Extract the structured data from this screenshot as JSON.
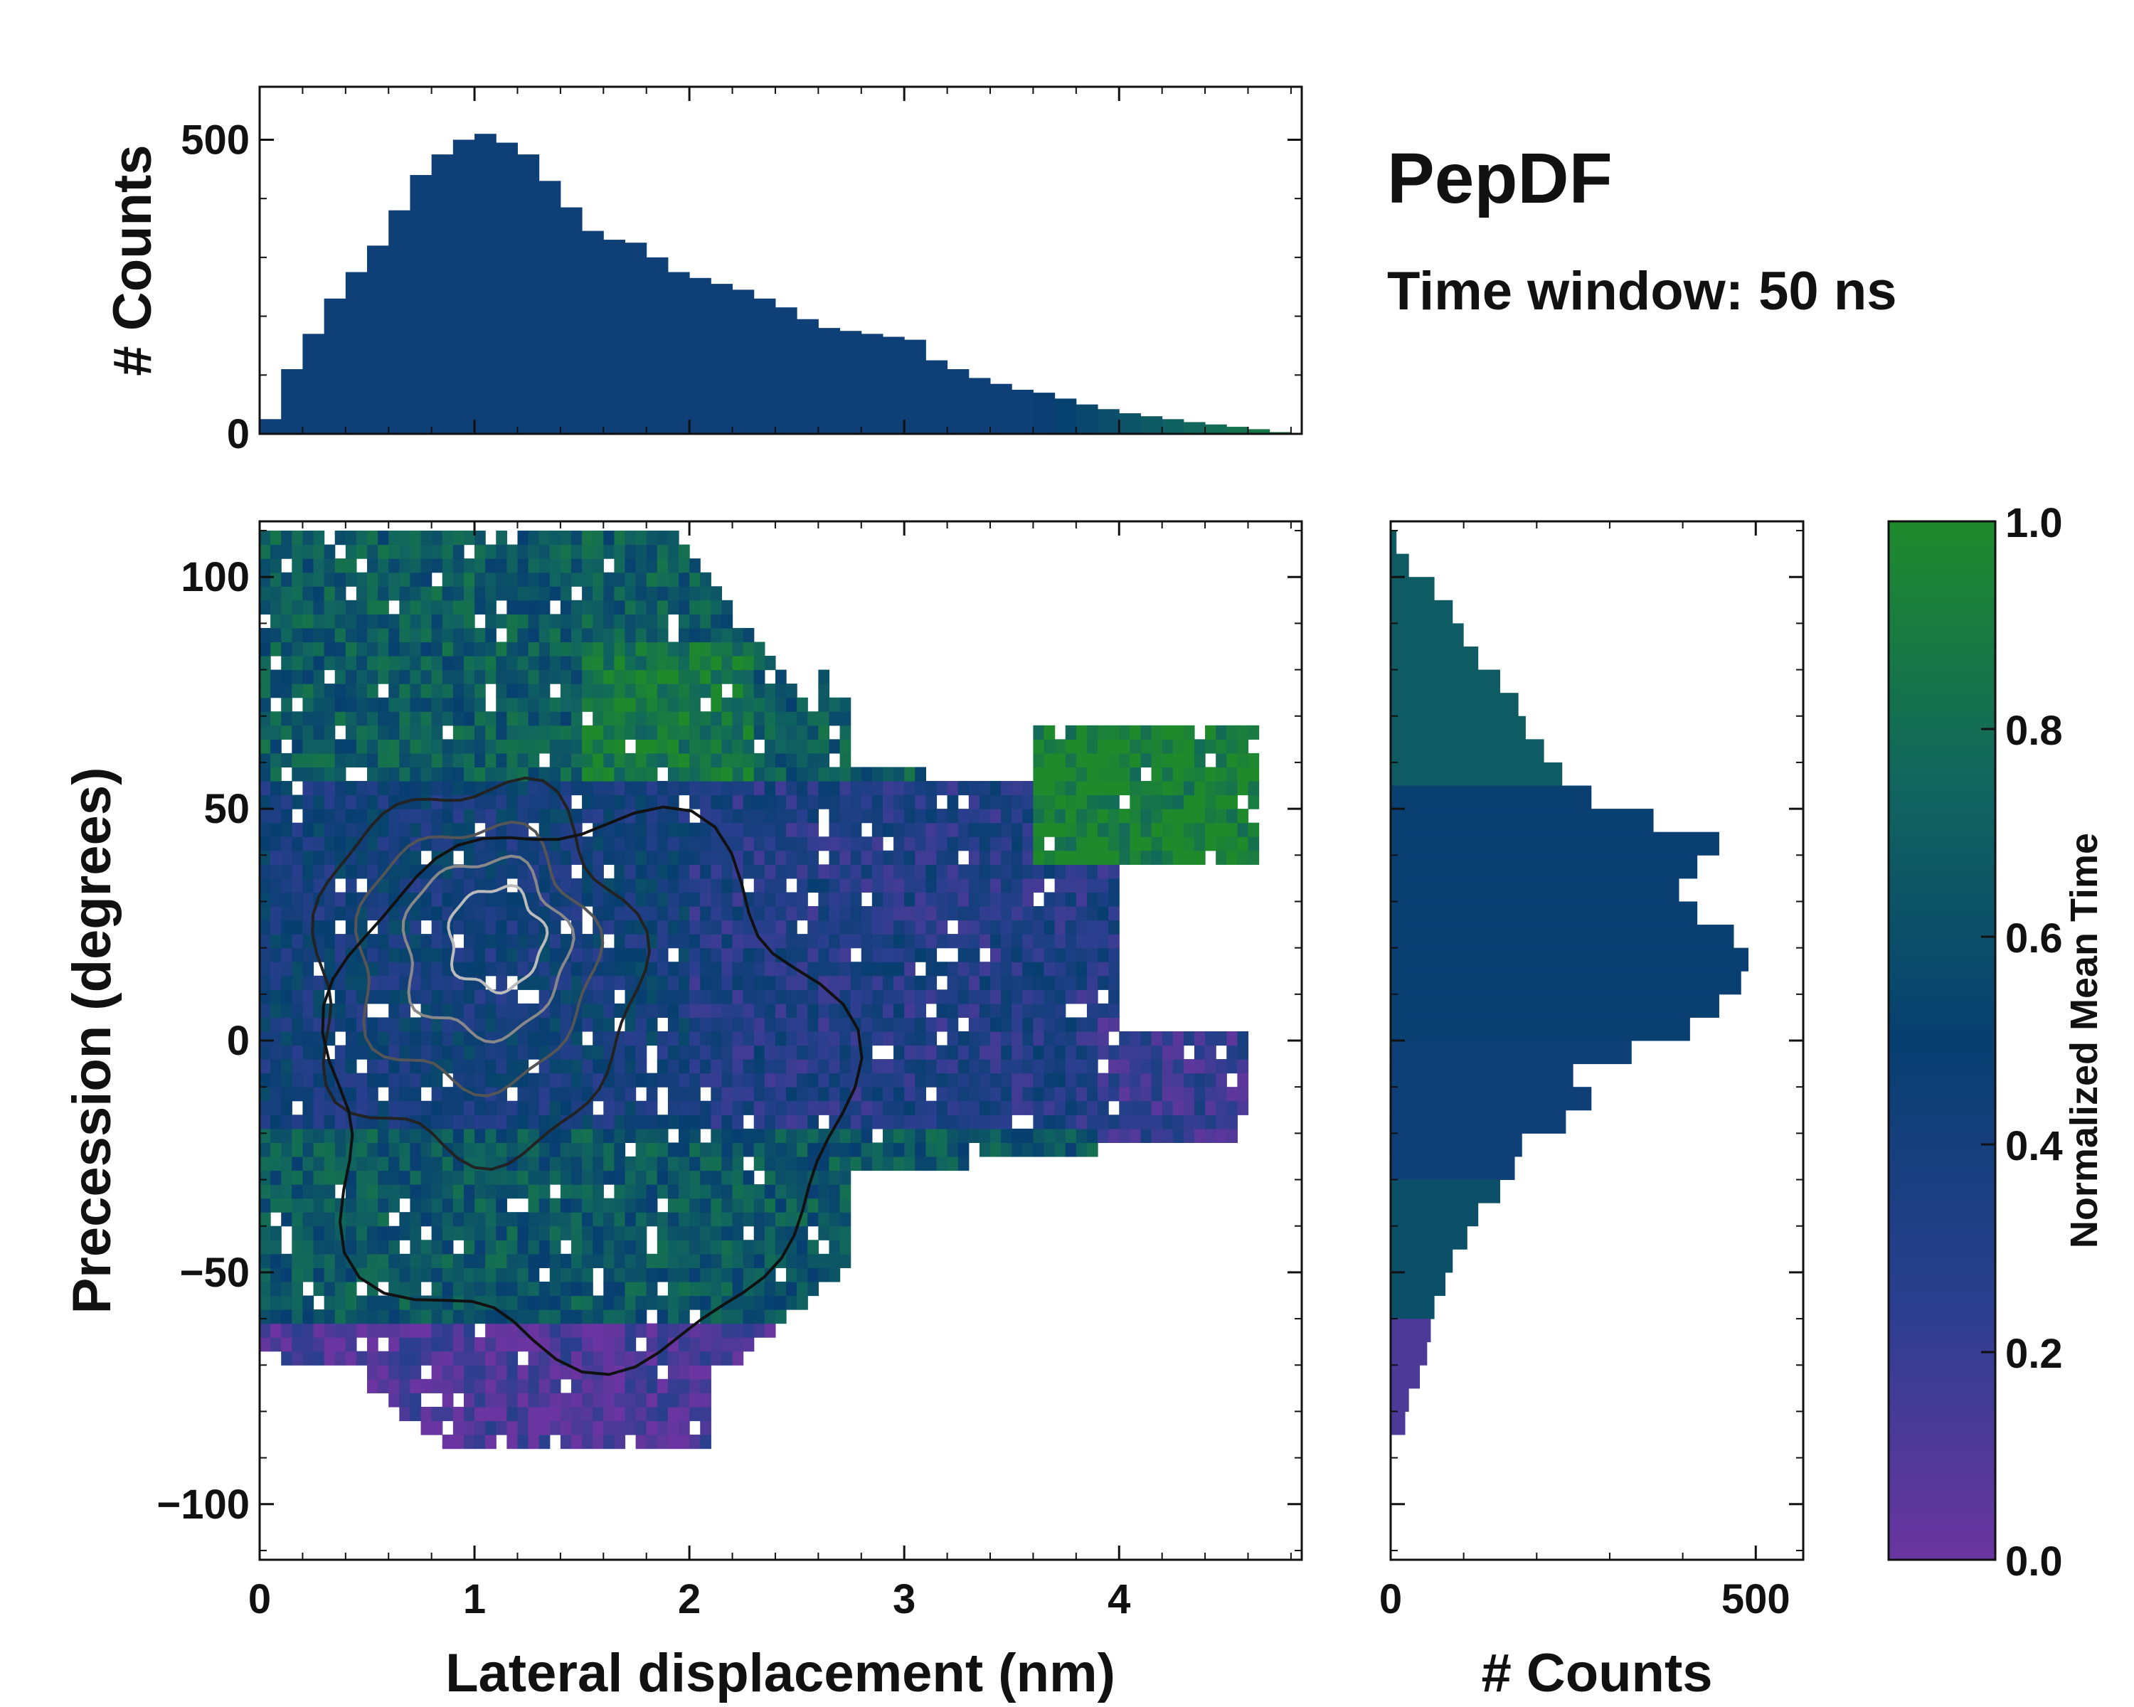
{
  "figure": {
    "title": "PepDF",
    "subtitle": "Time window: 50 ns"
  },
  "chart_data": [
    {
      "name": "joint",
      "type": "heatmap",
      "xlabel": "Lateral displacement (nm)",
      "ylabel": "Precession (degrees)",
      "xlim": [
        0,
        4.85
      ],
      "ylim": [
        -112,
        112
      ],
      "xticks": [
        0,
        1,
        2,
        3,
        4
      ],
      "yticks": [
        -100,
        -50,
        0,
        50,
        100
      ],
      "x_tick_labels": [
        "0",
        "1",
        "2",
        "3",
        "4"
      ],
      "y_tick_labels": [
        "−100",
        "−50",
        "0",
        "50",
        "100"
      ],
      "regions_color_value": [
        {
          "region": "x 0-0.6, y 40-100",
          "mean_time": 0.7
        },
        {
          "region": "x 0.6-2.5, y 60-110",
          "mean_time": 0.68
        },
        {
          "region": "x 0-2.0, y 0-45",
          "mean_time": 0.4
        },
        {
          "region": "x 2.0-4.0, y -20-50",
          "mean_time": 0.3
        },
        {
          "region": "x 3.6-4.7, y 40-70",
          "mean_time": 0.95
        },
        {
          "region": "x 3.8-4.7, y -20-0",
          "mean_time": 0.22
        },
        {
          "region": "x 0-3.0, y -70 to -20",
          "mean_time": 0.65
        },
        {
          "region": "x 0.5-2.0, y -90 to -60",
          "mean_time": 0.1
        }
      ]
    },
    {
      "name": "top-marginal",
      "type": "bar",
      "ylabel": "# Counts",
      "xlim": [
        0,
        4.85
      ],
      "ylim": [
        0,
        590
      ],
      "yticks": [
        0,
        500
      ],
      "y_tick_labels": [
        "0",
        "500"
      ],
      "x": [
        0.05,
        0.15,
        0.25,
        0.35,
        0.45,
        0.55,
        0.65,
        0.75,
        0.85,
        0.95,
        1.05,
        1.15,
        1.25,
        1.35,
        1.45,
        1.55,
        1.65,
        1.75,
        1.85,
        1.95,
        2.05,
        2.15,
        2.25,
        2.35,
        2.45,
        2.55,
        2.65,
        2.75,
        2.85,
        2.95,
        3.05,
        3.15,
        3.25,
        3.35,
        3.45,
        3.55,
        3.65,
        3.75,
        3.85,
        3.95,
        4.05,
        4.15,
        4.25,
        4.35,
        4.45,
        4.55,
        4.65,
        4.75
      ],
      "values": [
        25,
        110,
        170,
        230,
        275,
        320,
        380,
        440,
        475,
        500,
        510,
        495,
        475,
        430,
        385,
        345,
        330,
        325,
        300,
        275,
        265,
        255,
        245,
        230,
        215,
        195,
        180,
        175,
        170,
        165,
        160,
        125,
        110,
        95,
        85,
        75,
        70,
        60,
        50,
        42,
        35,
        30,
        25,
        20,
        16,
        12,
        8,
        3
      ]
    },
    {
      "name": "right-marginal",
      "type": "bar",
      "orientation": "horizontal",
      "xlabel": "# Counts",
      "xlim": [
        0,
        565
      ],
      "ylim": [
        -112,
        112
      ],
      "xticks": [
        0,
        500
      ],
      "x_tick_labels": [
        "0",
        "500"
      ],
      "y": [
        107.5,
        102.5,
        97.5,
        92.5,
        87.5,
        82.5,
        77.5,
        72.5,
        67.5,
        62.5,
        57.5,
        52.5,
        47.5,
        42.5,
        37.5,
        32.5,
        27.5,
        22.5,
        17.5,
        12.5,
        7.5,
        2.5,
        -2.5,
        -7.5,
        -12.5,
        -17.5,
        -22.5,
        -27.5,
        -32.5,
        -37.5,
        -42.5,
        -47.5,
        -52.5,
        -57.5,
        -62.5,
        -67.5,
        -72.5,
        -77.5,
        -82.5
      ],
      "values": [
        8,
        25,
        60,
        85,
        100,
        120,
        150,
        175,
        185,
        210,
        235,
        275,
        360,
        450,
        420,
        395,
        420,
        470,
        490,
        480,
        450,
        410,
        330,
        250,
        275,
        240,
        180,
        170,
        150,
        120,
        105,
        85,
        75,
        60,
        55,
        50,
        40,
        25,
        20
      ]
    },
    {
      "name": "colorbar",
      "type": "colorbar",
      "label": "Normalized Mean Time",
      "range": [
        0.0,
        1.0
      ],
      "ticks": [
        0.0,
        0.2,
        0.4,
        0.6,
        0.8,
        1.0
      ],
      "tick_labels": [
        "0.0",
        "0.2",
        "0.4",
        "0.6",
        "0.8",
        "1.0"
      ],
      "colormap": [
        "#6a35a0",
        "#2a3f8e",
        "#073f70",
        "#11665e",
        "#1f8a2c"
      ]
    }
  ]
}
